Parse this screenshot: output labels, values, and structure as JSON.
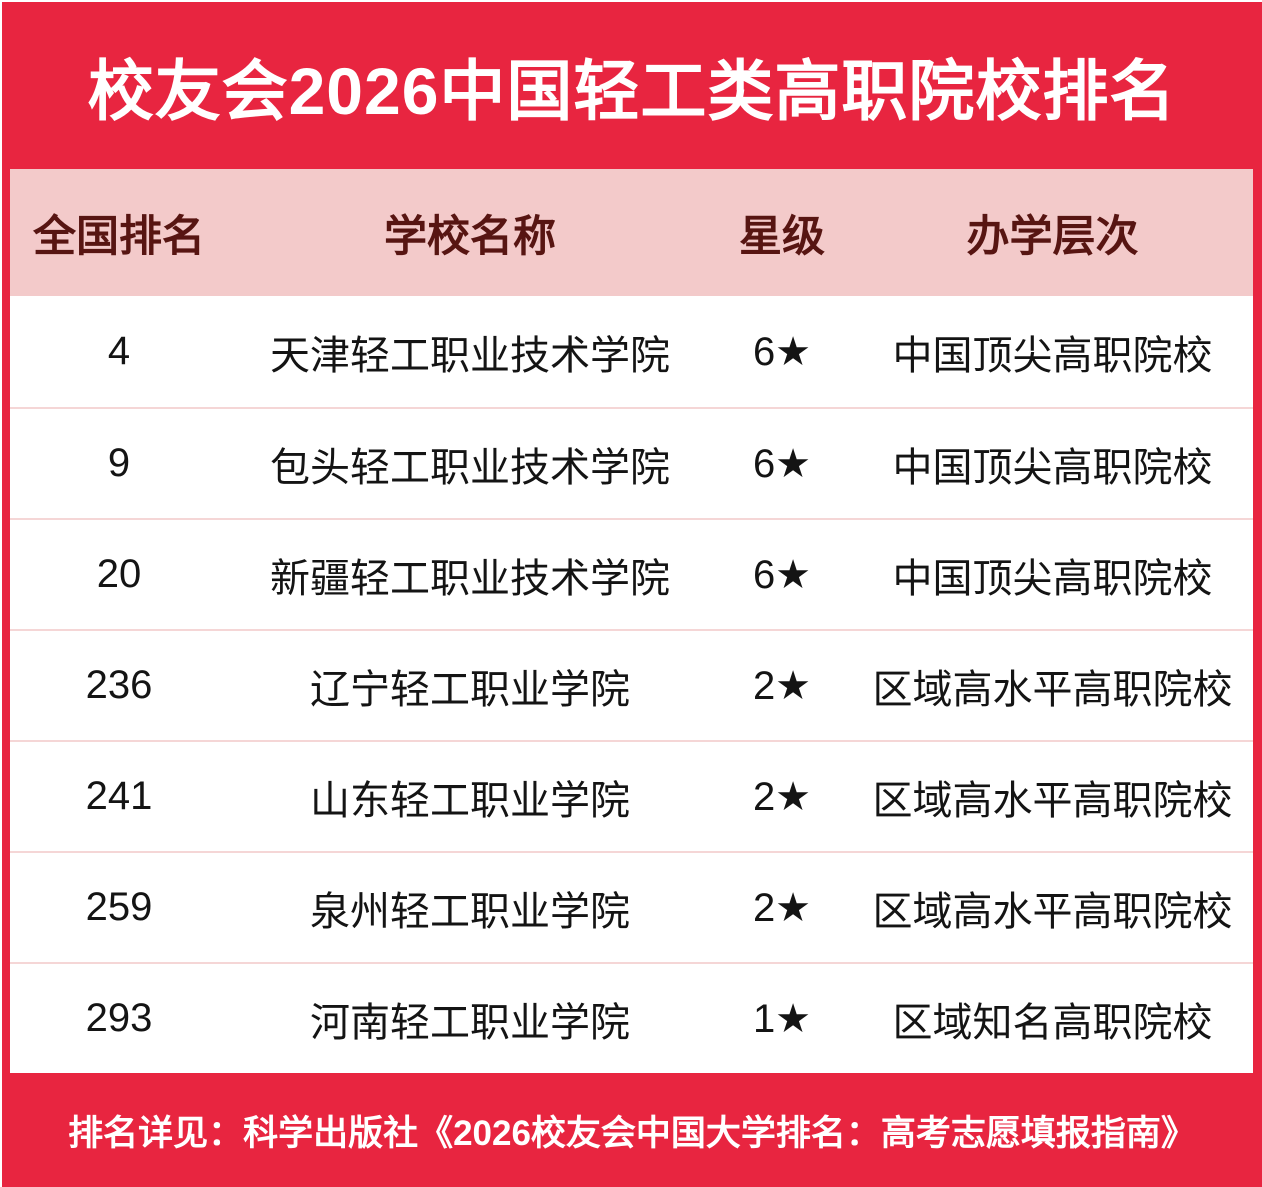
{
  "banner": {
    "title": "校友会2026中国轻工类高职院校排名"
  },
  "table": {
    "headers": {
      "rank": "全国排名",
      "school": "学校名称",
      "stars": "星级",
      "level": "办学层次"
    },
    "rows": [
      {
        "rank": "4",
        "school": "天津轻工职业技术学院",
        "stars": "6★",
        "level": "中国顶尖高职院校"
      },
      {
        "rank": "9",
        "school": "包头轻工职业技术学院",
        "stars": "6★",
        "level": "中国顶尖高职院校"
      },
      {
        "rank": "20",
        "school": "新疆轻工职业技术学院",
        "stars": "6★",
        "level": "中国顶尖高职院校"
      },
      {
        "rank": "236",
        "school": "辽宁轻工职业学院",
        "stars": "2★",
        "level": "区域高水平高职院校"
      },
      {
        "rank": "241",
        "school": "山东轻工职业学院",
        "stars": "2★",
        "level": "区域高水平高职院校"
      },
      {
        "rank": "259",
        "school": "泉州轻工职业学院",
        "stars": "2★",
        "level": "区域高水平高职院校"
      },
      {
        "rank": "293",
        "school": "河南轻工职业学院",
        "stars": "1★",
        "level": "区域知名高职院校"
      }
    ]
  },
  "footer": {
    "note": "排名详见：科学出版社《2026校友会中国大学排名：高考志愿填报指南》"
  },
  "colors": {
    "accent_red": "#e82540",
    "header_pink": "#f3caca",
    "header_text_maroon": "#571512",
    "row_divider_pink": "#f5d6d6",
    "body_text": "#141414",
    "banner_text": "#ffffff"
  }
}
